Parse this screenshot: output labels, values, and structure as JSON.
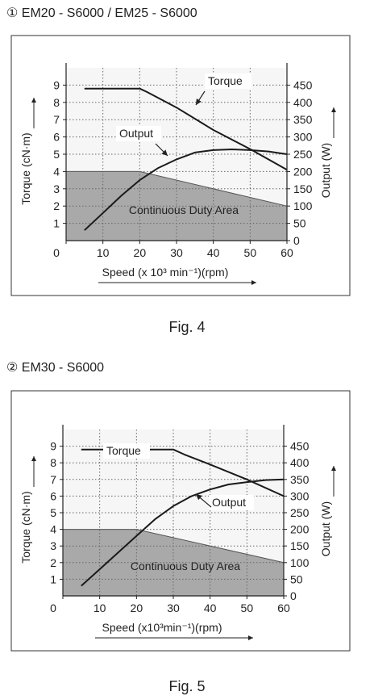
{
  "figures": [
    {
      "heading": "① EM20 - S6000 / EM25 - S6000",
      "caption": "Fig. 4",
      "chart_data": {
        "type": "line",
        "xlabel": "Speed (x 10³ min⁻¹)(rpm)",
        "ylabel_left": "Torque (cN·m)",
        "ylabel_right": "Output (W)",
        "x_ticks": [
          "0",
          "10",
          "20",
          "30",
          "40",
          "50",
          "60"
        ],
        "y_left_ticks": [
          "1",
          "2",
          "3",
          "4",
          "5",
          "6",
          "7",
          "8",
          "9"
        ],
        "y_right_ticks": [
          "0",
          "50",
          "100",
          "150",
          "200",
          "250",
          "300",
          "350",
          "400",
          "450"
        ],
        "xlim": [
          0,
          60
        ],
        "ylim_left": [
          0,
          10
        ],
        "ylim_right": [
          0,
          500
        ],
        "grid": true,
        "region_label": "Continuous Duty Area",
        "series": [
          {
            "name": "Torque",
            "axis": "left",
            "x": [
              5,
              10,
              20,
              22,
              30,
              40,
              50,
              60
            ],
            "y": [
              8.8,
              8.8,
              8.8,
              8.6,
              7.7,
              6.4,
              5.3,
              4.1
            ]
          },
          {
            "name": "Output",
            "axis": "right",
            "x": [
              5,
              10,
              15,
              20,
              25,
              30,
              35,
              40,
              45,
              50,
              55,
              60
            ],
            "y": [
              30,
              80,
              130,
              175,
              210,
              235,
              255,
              262,
              264,
              262,
              258,
              250
            ]
          },
          {
            "name": "Continuous Duty Area",
            "axis": "left",
            "x": [
              0,
              20,
              60
            ],
            "y": [
              4,
              4,
              2
            ]
          }
        ]
      }
    },
    {
      "heading": "② EM30 - S6000",
      "caption": "Fig. 5",
      "chart_data": {
        "type": "line",
        "xlabel": "Speed (x10³min⁻¹)(rpm)",
        "ylabel_left": "Torque (cN·m)",
        "ylabel_right": "Output (W)",
        "x_ticks": [
          "0",
          "10",
          "20",
          "30",
          "40",
          "50",
          "60"
        ],
        "y_left_ticks": [
          "1",
          "2",
          "3",
          "4",
          "5",
          "6",
          "7",
          "8",
          "9"
        ],
        "y_right_ticks": [
          "0",
          "50",
          "100",
          "150",
          "200",
          "250",
          "300",
          "350",
          "400",
          "450"
        ],
        "xlim": [
          0,
          60
        ],
        "ylim_left": [
          0,
          10
        ],
        "ylim_right": [
          0,
          500
        ],
        "grid": true,
        "region_label": "Continuous Duty Area",
        "series": [
          {
            "name": "Torque",
            "axis": "left",
            "x": [
              5,
              20,
              30,
              33,
              40,
              50,
              60
            ],
            "y": [
              8.8,
              8.8,
              8.8,
              8.5,
              7.9,
              7.0,
              6.0
            ]
          },
          {
            "name": "Output",
            "axis": "right",
            "x": [
              5,
              10,
              15,
              20,
              25,
              30,
              35,
              40,
              45,
              50,
              55,
              60
            ],
            "y": [
              30,
              80,
              130,
              180,
              230,
              270,
              300,
              320,
              335,
              342,
              348,
              350
            ]
          },
          {
            "name": "Continuous Duty Area",
            "axis": "left",
            "x": [
              0,
              20,
              60
            ],
            "y": [
              4,
              4,
              2
            ]
          }
        ]
      }
    }
  ]
}
